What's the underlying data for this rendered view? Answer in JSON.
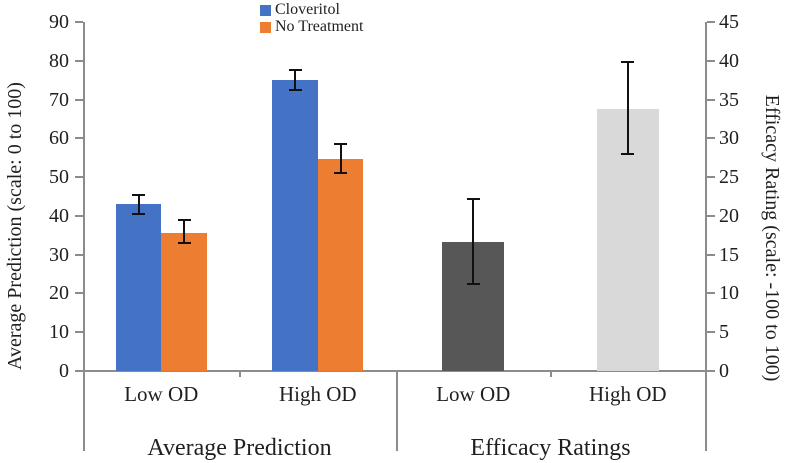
{
  "chart_data": {
    "type": "bar",
    "title": "",
    "grid": false,
    "legend_position": "top-center",
    "left_axis": {
      "label": "Average Prediction (scale: 0 to 100)",
      "min": 0,
      "max": 90,
      "step": 10,
      "tick_labels": [
        "0",
        "10",
        "20",
        "30",
        "40",
        "50",
        "60",
        "70",
        "80",
        "90"
      ]
    },
    "right_axis": {
      "label": "Efficacy Rating (scale: -100 to 100)",
      "min": 0,
      "max": 45,
      "step": 5,
      "tick_labels": [
        "0",
        "5",
        "10",
        "15",
        "20",
        "25",
        "30",
        "35",
        "40",
        "45"
      ]
    },
    "legend": [
      {
        "label": "Cloveritol",
        "color": "#4472C4"
      },
      {
        "label": "No Treatment",
        "color": "#ED7D31"
      }
    ],
    "panels": [
      {
        "group_label": "Average Prediction",
        "axis": "left",
        "categories": [
          "Low OD",
          "High OD"
        ],
        "series": [
          {
            "name": "Cloveritol",
            "colors": [
              "#4472C4",
              "#4472C4"
            ],
            "values": [
              43.0,
              75.0
            ],
            "error_low": [
              40.5,
              72.5
            ],
            "error_high": [
              45.3,
              77.5
            ]
          },
          {
            "name": "No Treatment",
            "colors": [
              "#ED7D31",
              "#ED7D31"
            ],
            "values": [
              35.7,
              54.6
            ],
            "error_low": [
              33.0,
              51.0
            ],
            "error_high": [
              39.0,
              58.5
            ]
          }
        ]
      },
      {
        "group_label": "Efficacy Ratings",
        "axis": "right",
        "categories": [
          "Low OD",
          "High OD"
        ],
        "series": [
          {
            "name": "Efficacy Rating",
            "colors": [
              "#575757",
              "#D9D9D9"
            ],
            "values": [
              16.6,
              33.8
            ],
            "error_low": [
              11.2,
              28.0
            ],
            "error_high": [
              22.2,
              39.9
            ]
          }
        ]
      }
    ],
    "colors": {
      "axis_line": "#8c8c8c",
      "error_bar": "#111111",
      "cloveritol": "#4472C4",
      "no_treatment": "#ED7D31",
      "efficacy_low": "#575757",
      "efficacy_high": "#D9D9D9"
    }
  }
}
